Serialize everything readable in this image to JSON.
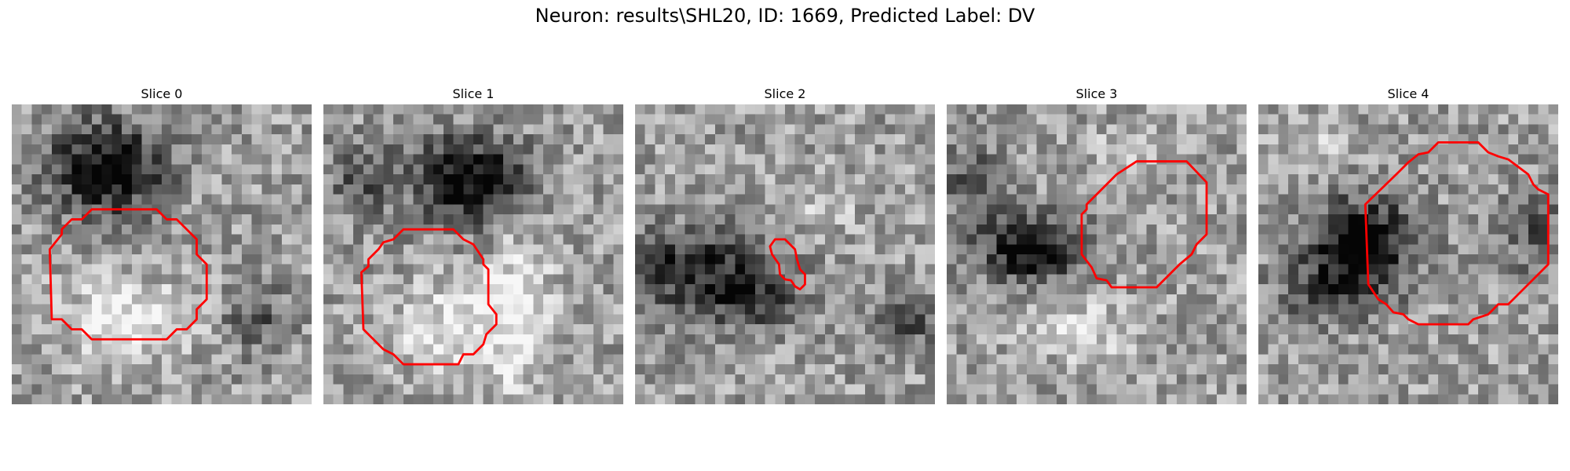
{
  "figure": {
    "title": "Neuron: results\\SHL20, ID: 1669, Predicted Label: DV"
  },
  "panels": [
    {
      "title": "Slice 0",
      "image": "grayscale-microscopy-patch",
      "overlay": "red-roi-contour",
      "dark_blob": "upper-center",
      "bright_region": "lower-center"
    },
    {
      "title": "Slice 1",
      "image": "grayscale-microscopy-patch",
      "overlay": "red-roi-contour",
      "dark_blob": "upper-right",
      "bright_region": "lower-center"
    },
    {
      "title": "Slice 2",
      "image": "grayscale-microscopy-patch",
      "overlay": "red-roi-contour",
      "dark_blob": "left-band",
      "bright_region": "none"
    },
    {
      "title": "Slice 3",
      "image": "grayscale-microscopy-patch",
      "overlay": "red-roi-contour",
      "dark_blob": "left-middle",
      "bright_region": "upper-right"
    },
    {
      "title": "Slice 4",
      "image": "grayscale-microscopy-patch",
      "overlay": "red-roi-contour",
      "dark_blob": "center",
      "bright_region": "none"
    }
  ],
  "colors": {
    "contour": "#ff0000",
    "background": "#ffffff"
  }
}
